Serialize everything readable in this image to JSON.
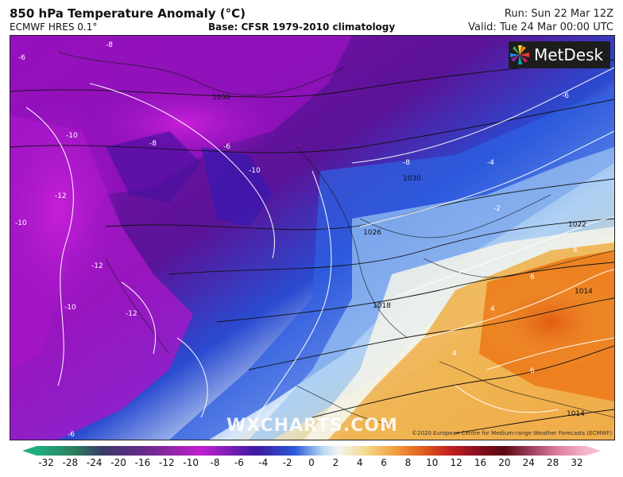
{
  "header": {
    "title": "850 hPa Temperature Anomaly (°C)",
    "model": "ECMWF HRES 0.1°",
    "base": "Base: CFSR 1979-2010 climatology",
    "run": "Run: Sun 22 Mar 12Z",
    "valid": "Valid: Tue 24 Mar 00:00 UTC"
  },
  "logo": {
    "text": "MetDesk"
  },
  "watermark": "WXCHARTS.COM",
  "copyright": "©2020 European Centre for Medium-range Weather Forecasts (ECMWF)",
  "map_labels": {
    "iso_m8_a": "-8",
    "iso_m6_a": "-6",
    "iso_m4_a": "-4",
    "iso_m10_a": "-10",
    "iso_m8_b": "-8",
    "iso_m6_b": "-6",
    "iso_m10_b": "-10",
    "iso_m12_a": "-12",
    "iso_m10_c": "-10",
    "iso_m12_b": "-12",
    "iso_m10_d": "-10",
    "iso_m12_c": "-12",
    "iso_m8_c": "-8",
    "iso_m6_c": "-6",
    "iso_m4_b": "-4",
    "iso_m2_a": "-2",
    "iso_p4_a": "4",
    "iso_p6_a": "6",
    "iso_p4_b": "4",
    "iso_p4_c": "4",
    "iso_p6_b": "6",
    "iso_m6_d": "-6",
    "p1030": "1030",
    "p1030b": "1030",
    "p1026": "1026",
    "p1022": "1022",
    "p1018": "1018",
    "p1014": "1014",
    "p1014b": "1014"
  },
  "colorbar": {
    "ticks": [
      "-32",
      "-28",
      "-24",
      "-20",
      "-16",
      "-12",
      "-10",
      "-8",
      "-6",
      "-4",
      "-2",
      "0",
      "2",
      "4",
      "6",
      "8",
      "10",
      "12",
      "16",
      "20",
      "24",
      "28",
      "32"
    ]
  }
}
